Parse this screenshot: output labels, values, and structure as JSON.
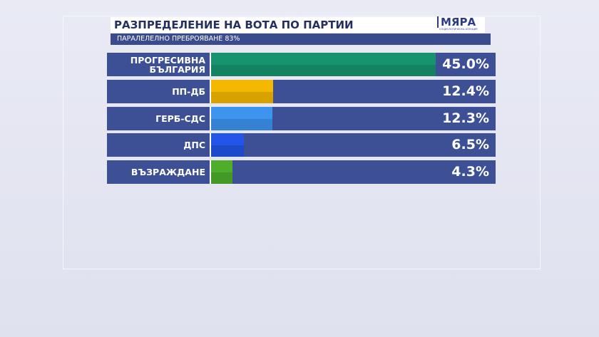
{
  "chart_data": {
    "type": "bar",
    "orientation": "horizontal",
    "title": "РАЗПРЕДЕЛЕНИЕ НА ВОТА ПО ПАРТИИ",
    "subtitle": "ПАРАЛЕЛЕЛНО ПРЕБРОЯВАНЕ 83%",
    "logo": "МЯРА",
    "logo_tagline": "СОЦИОЛОГИЧЕСКА АГЕНЦИЯ",
    "categories": [
      "ПРОГРЕСИВНА БЪЛГАРИЯ",
      "ПП-ДБ",
      "ГЕРБ-СДС",
      "ДПС",
      "ВЪЗРАЖДАНЕ"
    ],
    "values": [
      45.0,
      12.4,
      12.3,
      6.5,
      4.3
    ],
    "value_labels": [
      "45.0%",
      "12.4%",
      "12.3%",
      "6.5%",
      "4.3%"
    ],
    "colors": [
      "#17946f",
      "#f5b800",
      "#3d94ef",
      "#2255e8",
      "#4eae2c"
    ]
  }
}
